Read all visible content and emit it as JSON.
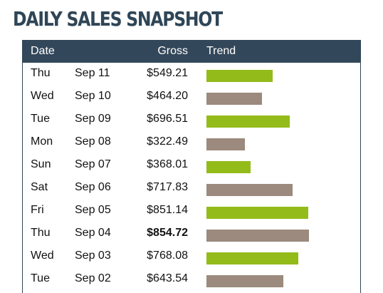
{
  "title": "DAILY SALES SNAPSHOT",
  "colors": {
    "header_bg": "#33475a",
    "title": "#2f4657",
    "bar_up": "#93bb1a",
    "bar_down": "#9b8a7d"
  },
  "table": {
    "headers": {
      "date": "Date",
      "gross": "Gross",
      "trend": "Trend"
    },
    "trend_max_gross": 854.72,
    "rows": [
      {
        "day": "Thu",
        "date": "Sep 11",
        "gross": "$549.21",
        "value": 549.21,
        "trend": "up"
      },
      {
        "day": "Wed",
        "date": "Sep 10",
        "gross": "$464.20",
        "value": 464.2,
        "trend": "down"
      },
      {
        "day": "Tue",
        "date": "Sep 09",
        "gross": "$696.51",
        "value": 696.51,
        "trend": "up"
      },
      {
        "day": "Mon",
        "date": "Sep 08",
        "gross": "$322.49",
        "value": 322.49,
        "trend": "down"
      },
      {
        "day": "Sun",
        "date": "Sep 07",
        "gross": "$368.01",
        "value": 368.01,
        "trend": "up"
      },
      {
        "day": "Sat",
        "date": "Sep 06",
        "gross": "$717.83",
        "value": 717.83,
        "trend": "down"
      },
      {
        "day": "Fri",
        "date": "Sep 05",
        "gross": "$851.14",
        "value": 851.14,
        "trend": "up"
      },
      {
        "day": "Thu",
        "date": "Sep 04",
        "gross": "$854.72",
        "value": 854.72,
        "trend": "down",
        "highlight": true
      },
      {
        "day": "Wed",
        "date": "Sep 03",
        "gross": "$768.08",
        "value": 768.08,
        "trend": "up"
      },
      {
        "day": "Tue",
        "date": "Sep 02",
        "gross": "$643.54",
        "value": 643.54,
        "trend": "down"
      }
    ]
  }
}
